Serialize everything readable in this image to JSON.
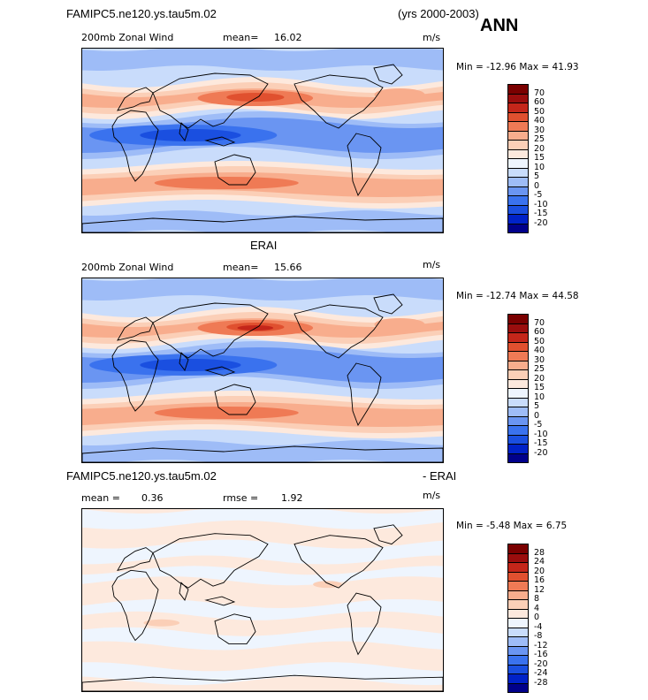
{
  "header": {
    "case_name": "FAMIPC5.ne120.ys.tau5m.02",
    "years": "(yrs 2000-2003)",
    "season": "ANN"
  },
  "panels": [
    {
      "id": "model",
      "title": "",
      "field_label": "200mb Zonal Wind",
      "stat1_label": "mean=",
      "stat1_value": "16.02",
      "stat2_label": "",
      "stat2_value": "",
      "units": "m/s",
      "min_label": "Min =",
      "min_value": "-12.96",
      "max_label": "Max =",
      "max_value": "41.93",
      "colorbar_levels": [
        "70",
        "60",
        "50",
        "40",
        "30",
        "25",
        "20",
        "15",
        "10",
        "5",
        "0",
        "-5",
        "-10",
        "-15",
        "-20"
      ]
    },
    {
      "id": "obs",
      "title": "ERAI",
      "field_label": "200mb Zonal Wind",
      "stat1_label": "mean=",
      "stat1_value": "15.66",
      "stat2_label": "",
      "stat2_value": "",
      "units": "m/s",
      "min_label": "Min =",
      "min_value": "-12.74",
      "max_label": "Max =",
      "max_value": "44.58",
      "colorbar_levels": [
        "70",
        "60",
        "50",
        "40",
        "30",
        "25",
        "20",
        "15",
        "10",
        "5",
        "0",
        "-5",
        "-10",
        "-15",
        "-20"
      ]
    },
    {
      "id": "diff",
      "title_left": "FAMIPC5.ne120.ys.tau5m.02",
      "title_right": "- ERAI",
      "field_label": "",
      "stat1_label": "mean =",
      "stat1_value": "0.36",
      "stat2_label": "rmse =",
      "stat2_value": "1.92",
      "units": "m/s",
      "min_label": "Min =",
      "min_value": "-5.48",
      "max_label": "Max =",
      "max_value": "6.75",
      "colorbar_levels": [
        "28",
        "24",
        "20",
        "16",
        "12",
        "8",
        "4",
        "0",
        "-4",
        "-8",
        "-12",
        "-16",
        "-20",
        "-24",
        "-28"
      ]
    }
  ],
  "chart_data": [
    {
      "type": "heatmap",
      "title": "200mb Zonal Wind",
      "units": "m/s",
      "mean": 16.02,
      "min": -12.96,
      "max": 41.93,
      "colorbar_levels": [
        -20,
        -15,
        -10,
        -5,
        0,
        5,
        10,
        15,
        20,
        25,
        30,
        40,
        50,
        60,
        70
      ],
      "colors": [
        "#00008b",
        "#0022c8",
        "#1a4fe0",
        "#3a72ee",
        "#6a95f2",
        "#9ebcf7",
        "#c9dcfb",
        "#eef5fe",
        "#fde9dd",
        "#fbcfb7",
        "#f8ad8d",
        "#ef7a55",
        "#e0502f",
        "#c4261a",
        "#9a0d0d",
        "#7a0000"
      ]
    },
    {
      "type": "heatmap",
      "title": "200mb Zonal Wind",
      "units": "m/s",
      "mean": 15.66,
      "min": -12.74,
      "max": 44.58,
      "colorbar_levels": [
        -20,
        -15,
        -10,
        -5,
        0,
        5,
        10,
        15,
        20,
        25,
        30,
        40,
        50,
        60,
        70
      ],
      "colors": [
        "#00008b",
        "#0022c8",
        "#1a4fe0",
        "#3a72ee",
        "#6a95f2",
        "#9ebcf7",
        "#c9dcfb",
        "#eef5fe",
        "#fde9dd",
        "#fbcfb7",
        "#f8ad8d",
        "#ef7a55",
        "#e0502f",
        "#c4261a",
        "#9a0d0d",
        "#7a0000"
      ]
    },
    {
      "type": "heatmap",
      "title": "",
      "units": "m/s",
      "mean": 0.36,
      "rmse": 1.92,
      "min": -5.48,
      "max": 6.75,
      "colorbar_levels": [
        -28,
        -24,
        -20,
        -16,
        -12,
        -8,
        -4,
        0,
        4,
        8,
        12,
        16,
        20,
        24,
        28
      ],
      "colors": [
        "#00008b",
        "#0022c8",
        "#1a4fe0",
        "#3a72ee",
        "#6a95f2",
        "#9ebcf7",
        "#c9dcfb",
        "#eef5fe",
        "#fde9dd",
        "#fbcfb7",
        "#f8ad8d",
        "#ef7a55",
        "#e0502f",
        "#c4261a",
        "#9a0d0d",
        "#7a0000"
      ]
    }
  ],
  "palette": {
    "jet_core": "#e8643c",
    "easterly": "#2a5ce6",
    "neutral_warm": "#fde4d4",
    "neutral_cool": "#dce9fb"
  }
}
